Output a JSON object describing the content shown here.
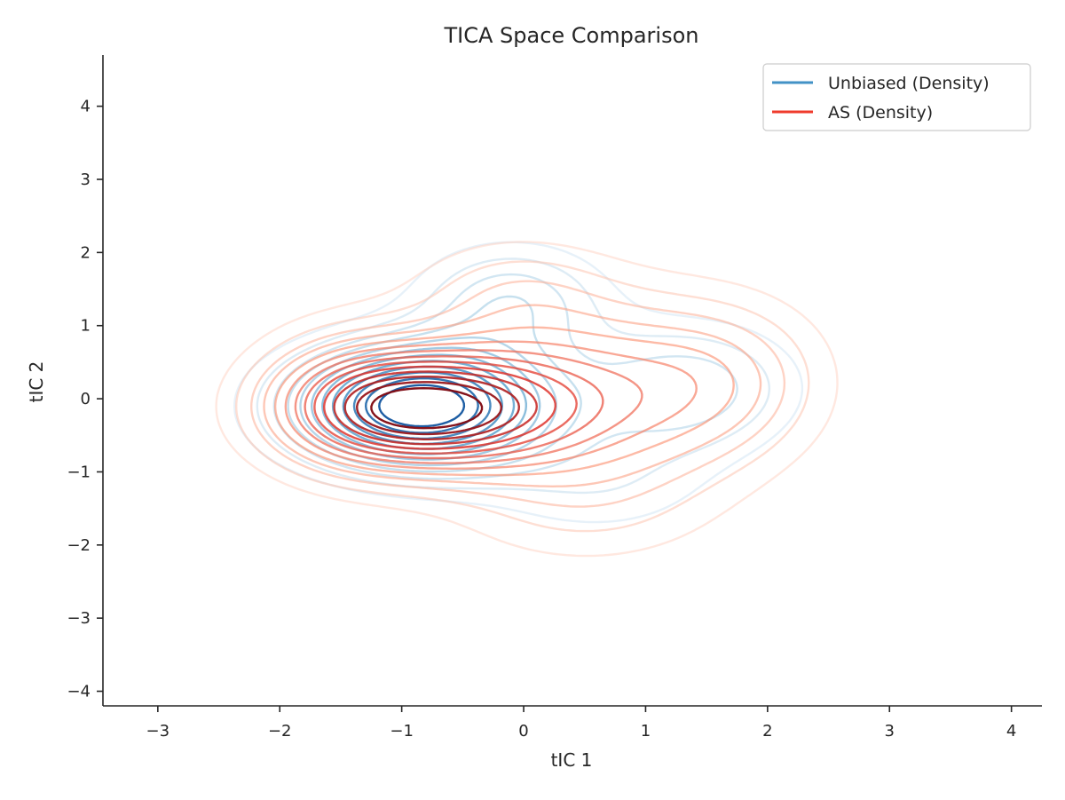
{
  "chart_data": {
    "type": "contour",
    "title": "TICA Space Comparison",
    "xlabel": "tIC 1",
    "ylabel": "tIC 2",
    "xlim": [
      -3.45,
      4.25
    ],
    "ylim": [
      -4.2,
      4.7
    ],
    "xticks": [
      -3,
      -2,
      -1,
      0,
      1,
      2,
      3,
      4
    ],
    "yticks": [
      -4,
      -3,
      -2,
      -1,
      0,
      1,
      2,
      3,
      4
    ],
    "xtick_labels": [
      "−3",
      "−2",
      "−1",
      "0",
      "1",
      "2",
      "3",
      "4"
    ],
    "ytick_labels": [
      "−4",
      "−3",
      "−2",
      "−1",
      "0",
      "1",
      "2",
      "3",
      "4"
    ],
    "grid": false,
    "legend_position": "top-right",
    "series": [
      {
        "name": "Unbiased (Density)",
        "legend_color": "#4292c6",
        "colormap": "Blues",
        "levels": 12,
        "mode": {
          "center": [
            -0.85,
            -0.1
          ],
          "spread": [
            0.55,
            0.38
          ]
        },
        "components": [
          {
            "weight": 1.0,
            "mean": [
              -0.85,
              -0.1
            ],
            "std": [
              0.72,
              0.58
            ]
          },
          {
            "weight": 0.3,
            "mean": [
              -0.1,
              1.35
            ],
            "std": [
              0.55,
              0.55
            ]
          },
          {
            "weight": 0.3,
            "mean": [
              1.35,
              0.15
            ],
            "std": [
              0.65,
              0.65
            ]
          },
          {
            "weight": 0.15,
            "mean": [
              0.6,
              -1.2
            ],
            "std": [
              0.7,
              0.55
            ]
          }
        ]
      },
      {
        "name": "AS (Density)",
        "legend_color": "#ef3b2c",
        "colormap": "Reds",
        "levels": 14,
        "mode": {
          "center": [
            -0.85,
            -0.1
          ],
          "spread": [
            0.58,
            0.42
          ]
        },
        "components": [
          {
            "weight": 1.0,
            "mean": [
              -0.8,
              -0.15
            ],
            "std": [
              0.75,
              0.55
            ]
          },
          {
            "weight": 0.5,
            "mean": [
              0.55,
              0.05
            ],
            "std": [
              0.95,
              0.95
            ]
          },
          {
            "weight": 0.3,
            "mean": [
              -1.5,
              0.0
            ],
            "std": [
              0.55,
              0.75
            ]
          },
          {
            "weight": 0.22,
            "mean": [
              1.7,
              0.3
            ],
            "std": [
              0.6,
              0.8
            ]
          },
          {
            "weight": 0.18,
            "mean": [
              -0.1,
              1.5
            ],
            "std": [
              0.6,
              0.55
            ]
          },
          {
            "weight": 0.14,
            "mean": [
              0.5,
              -1.6
            ],
            "std": [
              0.8,
              0.6
            ]
          }
        ]
      }
    ]
  }
}
